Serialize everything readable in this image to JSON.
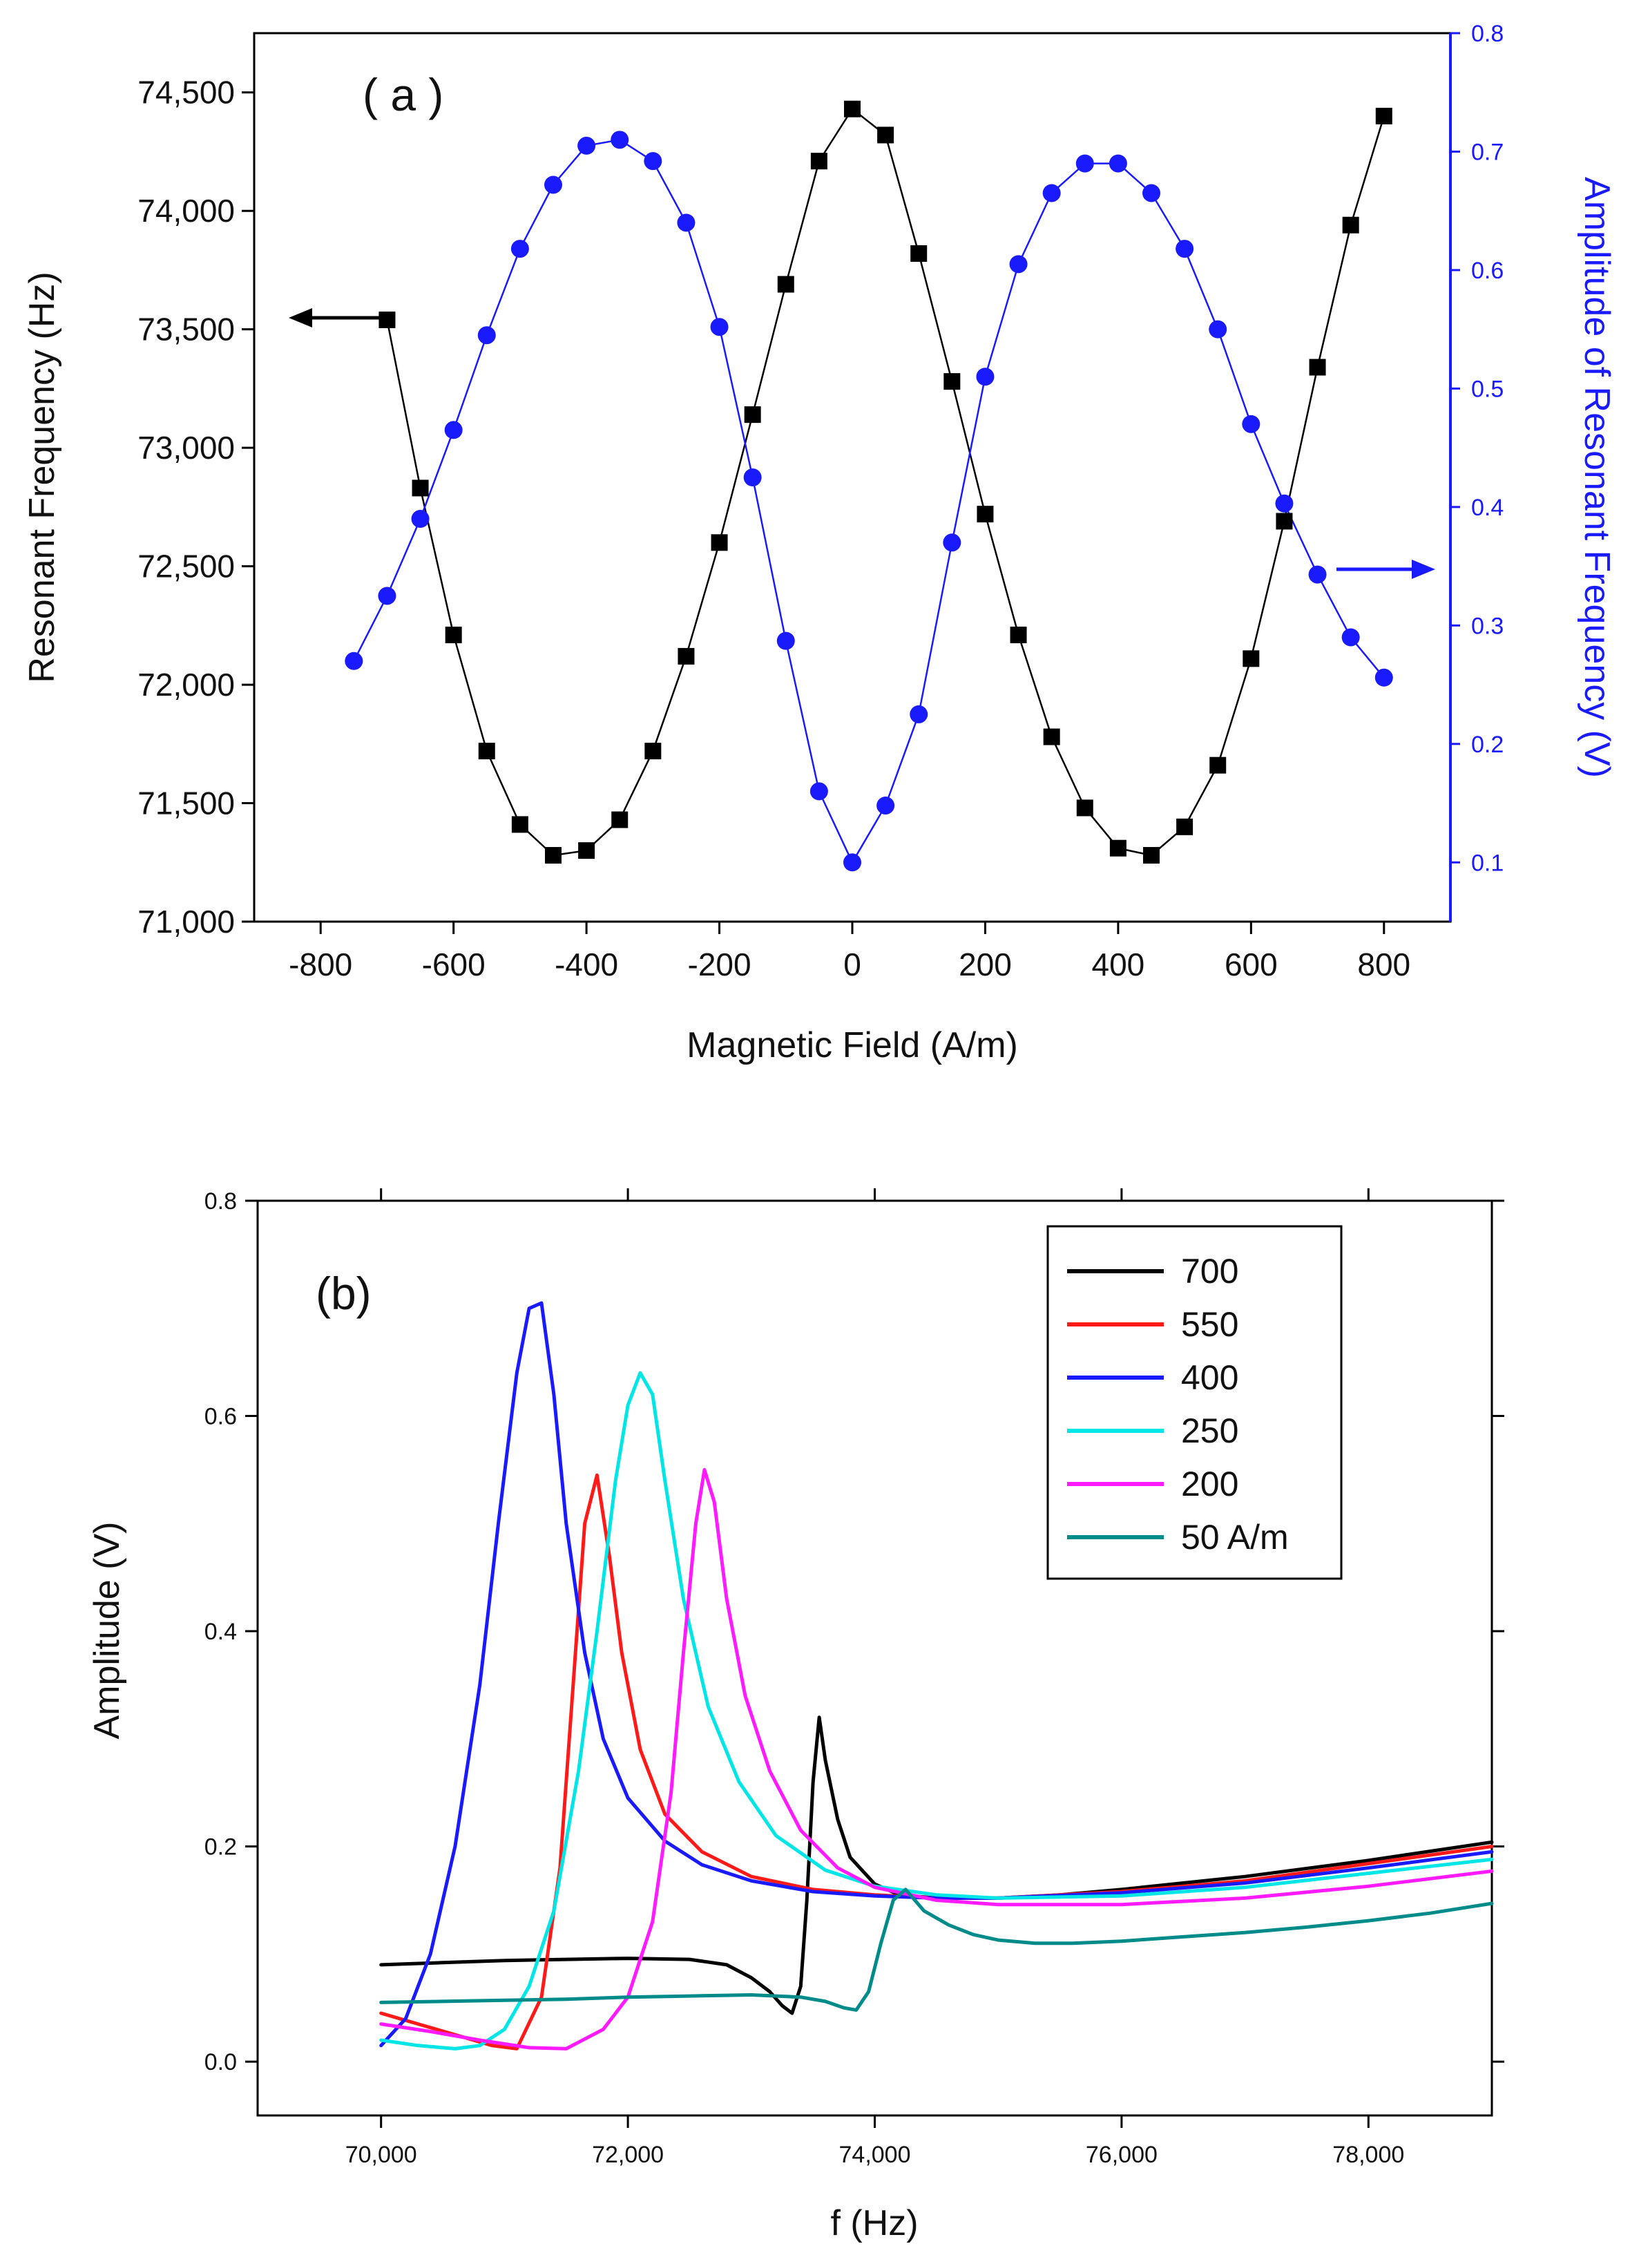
{
  "chart_data": [
    {
      "panel": "a",
      "type": "scatter",
      "title": "( a )",
      "xlabel": "Magnetic Field (A/m)",
      "ylabel": "Resonant Frequency (Hz)",
      "y2label": "Amplitude of Resonant Frequency (V)",
      "xlim": [
        -900,
        900
      ],
      "ylim": [
        71000,
        74750
      ],
      "y2lim": [
        0.05,
        0.8
      ],
      "xticks": [
        -800,
        -600,
        -400,
        -200,
        0,
        200,
        400,
        600,
        800
      ],
      "xtick_labels": [
        "-800",
        "-600",
        "-400",
        "-200",
        "0",
        "200",
        "400",
        "600",
        "800"
      ],
      "yticks": [
        71000,
        71500,
        72000,
        72500,
        73000,
        73500,
        74000,
        74500
      ],
      "ytick_labels": [
        "71,000",
        "71,500",
        "72,000",
        "72,500",
        "73,000",
        "73,500",
        "74,000",
        "74,500"
      ],
      "y2ticks": [
        0.1,
        0.2,
        0.3,
        0.4,
        0.5,
        0.6,
        0.7,
        0.8
      ],
      "y2tick_labels": [
        "0.1",
        "0.2",
        "0.3",
        "0.4",
        "0.5",
        "0.6",
        "0.7",
        "0.8"
      ],
      "series": [
        {
          "name": "Resonant Frequency",
          "axis": "left",
          "color": "#000000",
          "marker": "square",
          "x": [
            -700,
            -650,
            -600,
            -550,
            -500,
            -450,
            -400,
            -350,
            -300,
            -250,
            -200,
            -150,
            -100,
            -50,
            0,
            50,
            100,
            150,
            200,
            250,
            300,
            350,
            400,
            450,
            500,
            550,
            600,
            650,
            700,
            750,
            800
          ],
          "y": [
            73540,
            72830,
            72210,
            71720,
            71410,
            71280,
            71300,
            71430,
            71720,
            72120,
            72600,
            73140,
            73690,
            74210,
            74430,
            74320,
            73820,
            73280,
            72720,
            72210,
            71780,
            71480,
            71310,
            71280,
            71400,
            71660,
            72110,
            72690,
            73340,
            73940,
            74400
          ]
        },
        {
          "name": "Amplitude of Resonant Frequency",
          "axis": "right",
          "color": "#1a1aff",
          "marker": "circle",
          "x": [
            -750,
            -700,
            -650,
            -600,
            -550,
            -500,
            -450,
            -400,
            -350,
            -300,
            -250,
            -200,
            -150,
            -100,
            -50,
            0,
            50,
            100,
            150,
            200,
            250,
            300,
            350,
            400,
            450,
            500,
            550,
            600,
            650,
            700,
            750,
            800
          ],
          "y": [
            0.27,
            0.325,
            0.39,
            0.465,
            0.545,
            0.618,
            0.672,
            0.705,
            0.71,
            0.692,
            0.64,
            0.552,
            0.425,
            0.287,
            0.16,
            0.1,
            0.148,
            0.225,
            0.37,
            0.51,
            0.605,
            0.665,
            0.69,
            0.69,
            0.665,
            0.618,
            0.55,
            0.47,
            0.403,
            0.343,
            0.29,
            0.256
          ]
        }
      ],
      "annotations": [
        {
          "type": "arrow",
          "direction": "left",
          "target_axis": "left",
          "color": "#000000"
        },
        {
          "type": "arrow",
          "direction": "right",
          "target_axis": "right",
          "color": "#1a1aff"
        }
      ]
    },
    {
      "panel": "b",
      "type": "line",
      "title": "(b)",
      "xlabel": "f (Hz)",
      "ylabel": "Amplitude (V)",
      "xlim": [
        69000,
        79000
      ],
      "ylim": [
        -0.05,
        0.8
      ],
      "xticks": [
        70000,
        72000,
        74000,
        76000,
        78000
      ],
      "xtick_labels": [
        "70,000",
        "72,000",
        "74,000",
        "76,000",
        "78,000"
      ],
      "yticks": [
        0.0,
        0.2,
        0.4,
        0.6,
        0.8
      ],
      "ytick_labels": [
        "0.0",
        "0.2",
        "0.4",
        "0.6",
        "0.8"
      ],
      "legend_position": "top-right",
      "series": [
        {
          "name": "700",
          "color": "#000000",
          "x": [
            70000,
            70500,
            71000,
            71500,
            72000,
            72500,
            72800,
            73000,
            73150,
            73250,
            73330,
            73400,
            73450,
            73500,
            73550,
            73600,
            73700,
            73800,
            74000,
            74200,
            74500,
            75000,
            75500,
            76000,
            77000,
            78000,
            79000
          ],
          "y": [
            0.09,
            0.092,
            0.094,
            0.095,
            0.096,
            0.095,
            0.09,
            0.078,
            0.065,
            0.052,
            0.045,
            0.07,
            0.15,
            0.26,
            0.32,
            0.28,
            0.225,
            0.19,
            0.165,
            0.155,
            0.152,
            0.152,
            0.155,
            0.16,
            0.172,
            0.187,
            0.204
          ]
        },
        {
          "name": "550",
          "color": "#ff1a1a",
          "x": [
            70000,
            70300,
            70600,
            70900,
            71100,
            71300,
            71450,
            71550,
            71650,
            71750,
            71850,
            71950,
            72100,
            72300,
            72600,
            73000,
            73500,
            74000,
            74500,
            75000,
            76000,
            77000,
            78000,
            79000
          ],
          "y": [
            0.045,
            0.035,
            0.025,
            0.015,
            0.012,
            0.06,
            0.18,
            0.34,
            0.5,
            0.545,
            0.47,
            0.38,
            0.29,
            0.23,
            0.195,
            0.172,
            0.16,
            0.155,
            0.152,
            0.152,
            0.158,
            0.168,
            0.184,
            0.2
          ]
        },
        {
          "name": "400",
          "color": "#1a1aff",
          "x": [
            70000,
            70200,
            70400,
            70600,
            70800,
            70950,
            71100,
            71200,
            71300,
            71400,
            71500,
            71650,
            71800,
            72000,
            72300,
            72600,
            73000,
            73500,
            74000,
            74500,
            75000,
            76000,
            77000,
            78000,
            79000
          ],
          "y": [
            0.015,
            0.04,
            0.1,
            0.2,
            0.35,
            0.5,
            0.64,
            0.7,
            0.705,
            0.62,
            0.5,
            0.38,
            0.3,
            0.245,
            0.205,
            0.183,
            0.168,
            0.158,
            0.154,
            0.152,
            0.152,
            0.157,
            0.166,
            0.18,
            0.195
          ]
        },
        {
          "name": "250",
          "color": "#00e5e5",
          "x": [
            70000,
            70300,
            70600,
            70800,
            71000,
            71200,
            71400,
            71600,
            71750,
            71900,
            72000,
            72100,
            72200,
            72300,
            72450,
            72650,
            72900,
            73200,
            73600,
            74000,
            74500,
            75000,
            76000,
            77000,
            78000,
            79000
          ],
          "y": [
            0.02,
            0.015,
            0.012,
            0.015,
            0.03,
            0.07,
            0.14,
            0.27,
            0.4,
            0.54,
            0.61,
            0.64,
            0.62,
            0.54,
            0.43,
            0.33,
            0.26,
            0.21,
            0.178,
            0.163,
            0.155,
            0.152,
            0.154,
            0.162,
            0.175,
            0.188
          ]
        },
        {
          "name": "200",
          "color": "#ff1aff",
          "x": [
            70000,
            70400,
            70800,
            71200,
            71500,
            71800,
            72000,
            72200,
            72350,
            72450,
            72550,
            72620,
            72700,
            72800,
            72950,
            73150,
            73400,
            73700,
            74000,
            74500,
            75000,
            76000,
            77000,
            78000,
            79000
          ],
          "y": [
            0.035,
            0.028,
            0.02,
            0.013,
            0.012,
            0.03,
            0.06,
            0.13,
            0.25,
            0.38,
            0.5,
            0.55,
            0.52,
            0.43,
            0.34,
            0.27,
            0.215,
            0.18,
            0.162,
            0.15,
            0.146,
            0.146,
            0.152,
            0.163,
            0.177
          ]
        },
        {
          "name": "50 A/m",
          "color": "#008b8b",
          "x": [
            70000,
            70500,
            71000,
            71500,
            72000,
            72500,
            73000,
            73400,
            73600,
            73750,
            73850,
            73950,
            74050,
            74150,
            74250,
            74400,
            74600,
            74800,
            75000,
            75300,
            75600,
            76000,
            76500,
            77000,
            77500,
            78000,
            78500,
            79000
          ],
          "y": [
            0.055,
            0.056,
            0.057,
            0.058,
            0.06,
            0.061,
            0.062,
            0.06,
            0.056,
            0.05,
            0.048,
            0.065,
            0.11,
            0.15,
            0.16,
            0.14,
            0.127,
            0.118,
            0.113,
            0.11,
            0.11,
            0.112,
            0.116,
            0.12,
            0.125,
            0.131,
            0.138,
            0.147
          ]
        }
      ]
    }
  ]
}
